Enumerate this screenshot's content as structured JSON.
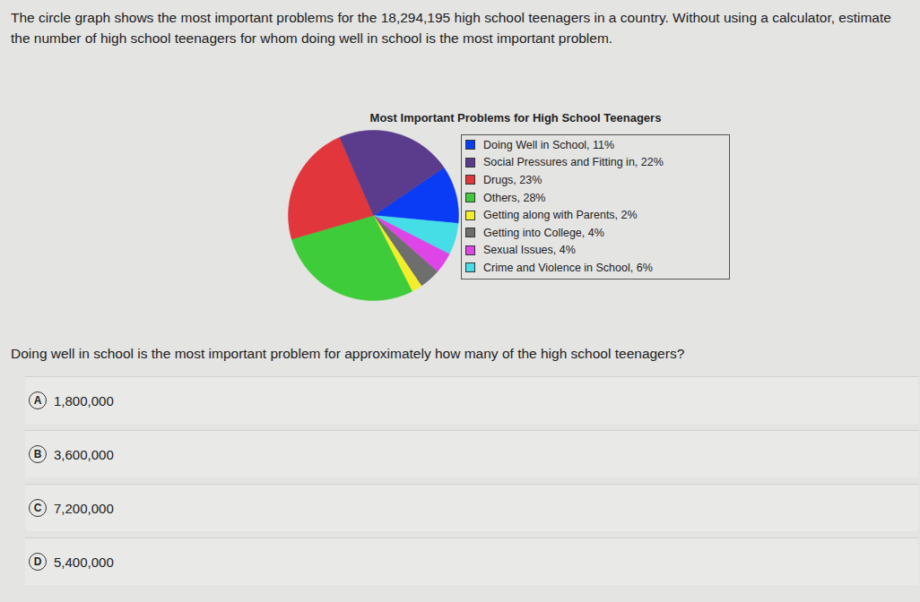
{
  "question": "The circle graph shows the most important problems for the 18,294,195 high school teenagers in a country. Without using a calculator, estimate the number of high school teenagers for whom doing well in school is the most important problem.",
  "chart_data": {
    "type": "pie",
    "title": "Most Important Problems for High School Teenagers",
    "categories": [
      "Doing Well  in School, 11%",
      "Social Pressures and Fitting in, 22%",
      "Drugs, 23%",
      "Others, 28%",
      "Getting along with Parents, 2%",
      "Getting into College, 4%",
      "Sexual Issues, 4%",
      "Crime and Violence in School, 6%"
    ],
    "values": [
      11,
      22,
      23,
      28,
      2,
      4,
      4,
      6
    ],
    "colors": [
      "#0b3cf5",
      "#5a3b8c",
      "#e0363c",
      "#3fcc3a",
      "#f3ee2a",
      "#6e6e6e",
      "#dd45e6",
      "#45dde6"
    ]
  },
  "prompt": "Doing well in school is the most important problem for approximately how many of the high school teenagers?",
  "options": [
    {
      "letter": "A",
      "text": "1,800,000"
    },
    {
      "letter": "B",
      "text": "3,600,000"
    },
    {
      "letter": "C",
      "text": "7,200,000"
    },
    {
      "letter": "D",
      "text": "5,400,000"
    }
  ]
}
